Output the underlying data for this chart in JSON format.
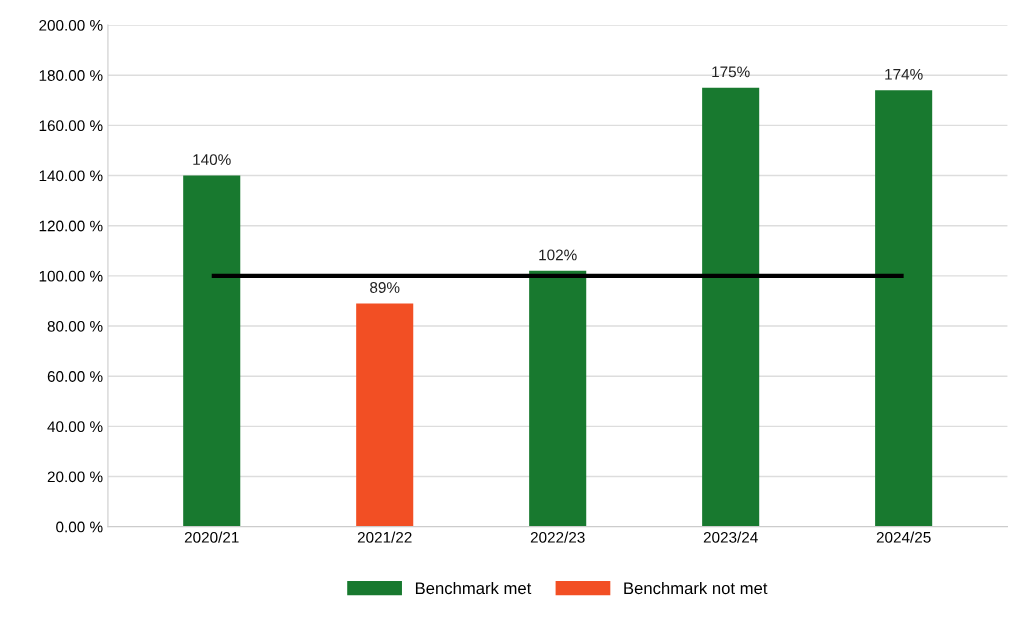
{
  "chart_data": {
    "type": "bar",
    "stacked": true,
    "categories": [
      "2020/21",
      "2021/22",
      "2022/23",
      "2023/24",
      "2024/25"
    ],
    "series": [
      {
        "name": "Benchmark met",
        "color": "#18792f",
        "values": [
          140,
          null,
          102,
          175,
          174
        ],
        "value_labels": [
          "140%",
          null,
          "102%",
          "175%",
          "174%"
        ]
      },
      {
        "name": "Benchmark not met",
        "color": "#f24f24",
        "values": [
          null,
          89,
          null,
          null,
          null
        ],
        "value_labels": [
          null,
          "89%",
          null,
          null,
          null
        ]
      }
    ],
    "ylim": [
      0,
      200
    ],
    "yticks": [
      {
        "value": 0,
        "label": "0.00 %"
      },
      {
        "value": 20,
        "label": "20.00 %"
      },
      {
        "value": 40,
        "label": "40.00 %"
      },
      {
        "value": 60,
        "label": "60.00 %"
      },
      {
        "value": 80,
        "label": "80.00 %"
      },
      {
        "value": 100,
        "label": "100.00 %"
      },
      {
        "value": 120,
        "label": "120.00 %"
      },
      {
        "value": 140,
        "label": "140.00 %"
      },
      {
        "value": 160,
        "label": "160.00 %"
      },
      {
        "value": 180,
        "label": "180.00 %"
      },
      {
        "value": 200,
        "label": "200.00 %"
      }
    ],
    "ref_lines": [
      {
        "axis": "y",
        "value": 100,
        "color": "#000000"
      }
    ],
    "grid": "y",
    "legend": "bottom"
  }
}
